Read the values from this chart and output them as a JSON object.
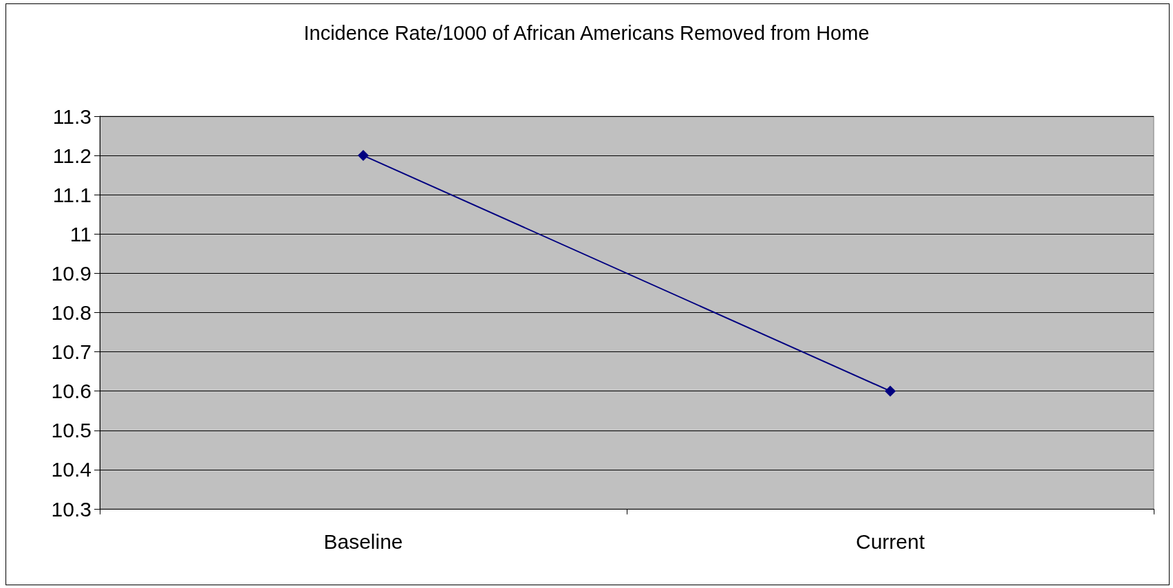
{
  "chart_data": {
    "type": "line",
    "title": "Incidence Rate/1000 of African Americans Removed from Home",
    "categories": [
      "Baseline",
      "Current"
    ],
    "series": [
      {
        "color": "#000080",
        "values": [
          11.2,
          10.6
        ]
      }
    ],
    "ylim": [
      10.3,
      11.3
    ],
    "yticks": [
      10.3,
      10.4,
      10.5,
      10.6,
      10.7,
      10.8,
      10.9,
      11,
      11.1,
      11.2,
      11.3
    ],
    "grid": "y",
    "marker": "diamond",
    "line_style": "solid"
  }
}
